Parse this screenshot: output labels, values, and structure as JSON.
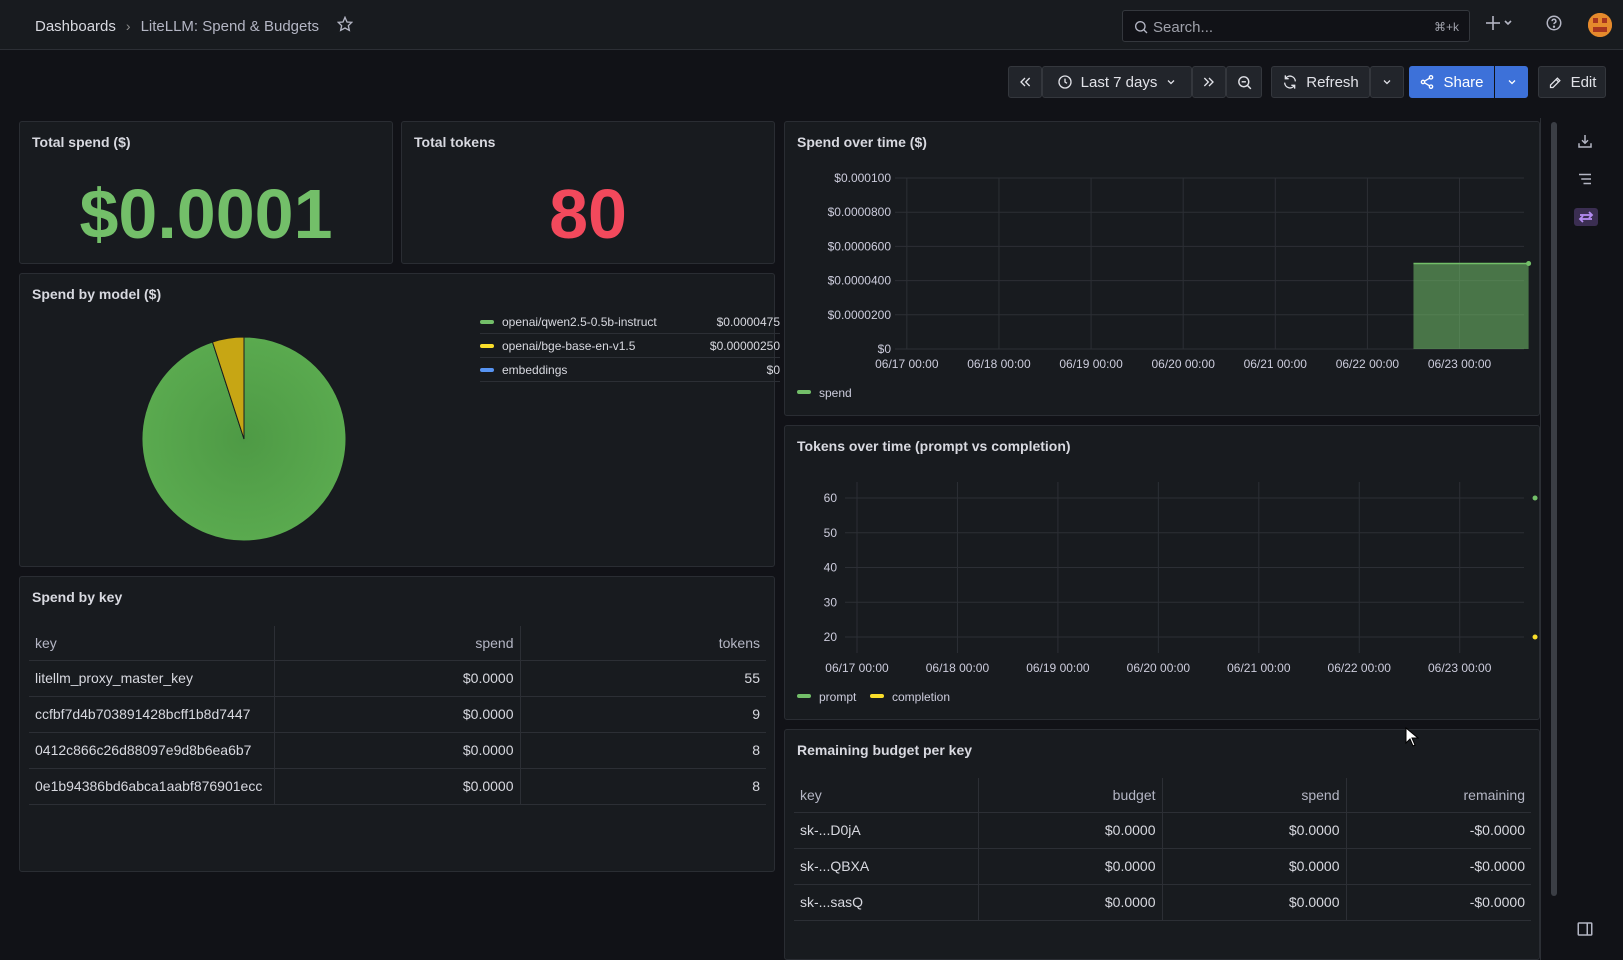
{
  "topbar": {
    "breadcrumb_home": "Dashboards",
    "breadcrumb_sep": "›",
    "breadcrumb_current": "LiteLLM: Spend & Budgets",
    "search_placeholder": "Search...",
    "search_shortcut": "⌘+k"
  },
  "toolbar": {
    "time_range": "Last 7 days",
    "refresh_label": "Refresh",
    "share_label": "Share",
    "edit_label": "Edit"
  },
  "panels": {
    "total_spend": {
      "title": "Total spend ($)",
      "value": "$0.0001",
      "color": "#73bf69"
    },
    "total_tokens": {
      "title": "Total tokens",
      "value": "80",
      "color": "#f2495c"
    },
    "spend_by_model": {
      "title": "Spend by model ($)",
      "legend": [
        {
          "name": "openai/qwen2.5-0.5b-instruct",
          "value": "$0.0000475",
          "color": "#73bf69"
        },
        {
          "name": "openai/bge-base-en-v1.5",
          "value": "$0.00000250",
          "color": "#fade2a"
        },
        {
          "name": "embeddings",
          "value": "$0",
          "color": "#5794f2"
        }
      ]
    },
    "spend_over_time": {
      "title": "Spend over time ($)"
    },
    "tokens_over_time": {
      "title": "Tokens over time (prompt vs completion)"
    },
    "spend_by_key": {
      "title": "Spend by key",
      "columns": [
        "key",
        "spend",
        "tokens"
      ],
      "rows": [
        [
          "litellm_proxy_master_key",
          "$0.0000",
          "55"
        ],
        [
          "ccfbf7d4b703891428bcff1b8d7447",
          "$0.0000",
          "9"
        ],
        [
          "0412c866c26d88097e9d8b6ea6b7",
          "$0.0000",
          "8"
        ],
        [
          "0e1b94386bd6abca1aabf876901ecc",
          "$0.0000",
          "8"
        ]
      ]
    },
    "remaining_budget": {
      "title": "Remaining budget per key",
      "columns": [
        "key",
        "budget",
        "spend",
        "remaining"
      ],
      "rows": [
        [
          "sk-...D0jA",
          "$0.0000",
          "$0.0000",
          "-$0.0000"
        ],
        [
          "sk-...QBXA",
          "$0.0000",
          "$0.0000",
          "-$0.0000"
        ],
        [
          "sk-...sasQ",
          "$0.0000",
          "$0.0000",
          "-$0.0000"
        ]
      ]
    }
  },
  "chart_data": [
    {
      "type": "pie",
      "labels": [
        "openai/qwen2.5-0.5b-instruct",
        "openai/bge-base-en-v1.5",
        "embeddings"
      ],
      "values": [
        4.75e-05,
        2.5e-06,
        0
      ],
      "colors": [
        "#73bf69",
        "#c7a614",
        "#5794f2"
      ]
    },
    {
      "type": "area",
      "title": "Spend over time ($)",
      "x": [
        "06/17 00:00",
        "06/18 00:00",
        "06/19 00:00",
        "06/20 00:00",
        "06/21 00:00",
        "06/22 00:00",
        "06/23 00:00"
      ],
      "y_ticks": [
        "$0",
        "$0.0000200",
        "$0.0000400",
        "$0.0000600",
        "$0.0000800",
        "$0.000100"
      ],
      "ylim": [
        0,
        0.0001
      ],
      "series": [
        {
          "name": "spend",
          "color": "#73bf69",
          "points": [
            [
              "06/22 12:00",
              5e-05
            ],
            [
              "06/23 18:00",
              5e-05
            ]
          ]
        }
      ]
    },
    {
      "type": "scatter",
      "title": "Tokens over time (prompt vs completion)",
      "x": [
        "06/17 00:00",
        "06/18 00:00",
        "06/19 00:00",
        "06/20 00:00",
        "06/21 00:00",
        "06/22 00:00",
        "06/23 00:00"
      ],
      "y_ticks": [
        "20",
        "30",
        "40",
        "50",
        "60"
      ],
      "ylim": [
        20,
        60
      ],
      "series": [
        {
          "name": "prompt",
          "color": "#73bf69",
          "points": [
            [
              "06/23 18:00",
              60
            ]
          ]
        },
        {
          "name": "completion",
          "color": "#fade2a",
          "points": [
            [
              "06/23 18:00",
              20
            ]
          ]
        }
      ]
    }
  ]
}
